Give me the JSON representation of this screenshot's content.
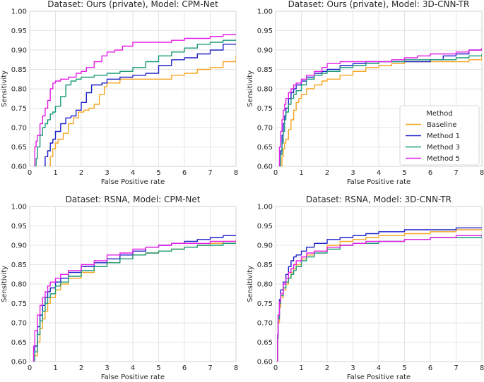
{
  "figure": {
    "legend": {
      "title": "Method",
      "entries": [
        "Baseline",
        "Method 1",
        "Method 3",
        "Method 5"
      ]
    }
  },
  "colors": {
    "Baseline": "#f5a623",
    "Method 1": "#1f22c9",
    "Method 3": "#1a9a78",
    "Method 5": "#e51ee5"
  },
  "chart_data": [
    {
      "type": "line",
      "title": "Dataset: Ours (private), Model: CPM-Net",
      "xlabel": "False Positive rate",
      "ylabel": "Sensitivity",
      "xlim": [
        0,
        8
      ],
      "ylim": [
        0.6,
        1.0
      ],
      "xticks": [
        "0",
        "1",
        "2",
        "3",
        "4",
        "5",
        "6",
        "7",
        "8"
      ],
      "yticks": [
        "0.60",
        "0.65",
        "0.70",
        "0.75",
        "0.80",
        "0.85",
        "0.90",
        "0.95",
        "1.00"
      ],
      "grid": true,
      "series": [
        {
          "name": "Baseline",
          "x": [
            0.75,
            0.8,
            0.9,
            1.0,
            1.1,
            1.3,
            1.5,
            1.7,
            1.9,
            2.1,
            2.3,
            2.5,
            2.7,
            2.9,
            3.0,
            3.5,
            4.0,
            4.5,
            5.0,
            5.5,
            6.0,
            6.5,
            7.0,
            7.5,
            8.0
          ],
          "y": [
            0.6,
            0.625,
            0.645,
            0.66,
            0.67,
            0.685,
            0.71,
            0.725,
            0.74,
            0.745,
            0.75,
            0.76,
            0.785,
            0.805,
            0.815,
            0.825,
            0.825,
            0.825,
            0.825,
            0.835,
            0.84,
            0.85,
            0.855,
            0.87,
            0.885
          ]
        },
        {
          "name": "Method 1",
          "x": [
            0.55,
            0.6,
            0.7,
            0.8,
            0.9,
            1.0,
            1.2,
            1.4,
            1.6,
            1.8,
            2.0,
            2.2,
            2.4,
            2.6,
            2.8,
            3.0,
            3.5,
            4.0,
            4.5,
            5.0,
            5.5,
            6.0,
            6.5,
            7.0,
            7.5,
            8.0
          ],
          "y": [
            0.6,
            0.625,
            0.64,
            0.66,
            0.67,
            0.69,
            0.71,
            0.725,
            0.73,
            0.745,
            0.765,
            0.79,
            0.81,
            0.81,
            0.815,
            0.825,
            0.83,
            0.835,
            0.84,
            0.86,
            0.875,
            0.88,
            0.89,
            0.9,
            0.915,
            0.915
          ]
        },
        {
          "name": "Method 3",
          "x": [
            0.2,
            0.25,
            0.3,
            0.4,
            0.5,
            0.6,
            0.7,
            0.8,
            0.9,
            1.0,
            1.2,
            1.4,
            1.6,
            1.8,
            2.0,
            2.5,
            3.0,
            3.5,
            4.0,
            4.5,
            5.0,
            5.5,
            6.0,
            6.5,
            7.0,
            7.5,
            8.0
          ],
          "y": [
            0.6,
            0.62,
            0.65,
            0.68,
            0.7,
            0.71,
            0.72,
            0.735,
            0.74,
            0.755,
            0.78,
            0.81,
            0.82,
            0.825,
            0.83,
            0.835,
            0.84,
            0.845,
            0.855,
            0.87,
            0.885,
            0.895,
            0.905,
            0.915,
            0.92,
            0.925,
            0.925
          ]
        },
        {
          "name": "Method 5",
          "x": [
            0.15,
            0.2,
            0.25,
            0.3,
            0.4,
            0.5,
            0.6,
            0.7,
            0.8,
            0.9,
            1.0,
            1.2,
            1.5,
            1.8,
            2.0,
            2.2,
            2.5,
            2.8,
            3.0,
            3.3,
            3.6,
            4.0,
            4.5,
            5.0,
            5.5,
            6.0,
            6.5,
            7.0,
            7.5,
            8.0
          ],
          "y": [
            0.6,
            0.65,
            0.665,
            0.68,
            0.71,
            0.73,
            0.75,
            0.77,
            0.8,
            0.815,
            0.82,
            0.825,
            0.83,
            0.84,
            0.845,
            0.855,
            0.87,
            0.885,
            0.895,
            0.9,
            0.91,
            0.92,
            0.92,
            0.92,
            0.925,
            0.93,
            0.93,
            0.935,
            0.94,
            0.94
          ]
        }
      ]
    },
    {
      "type": "line",
      "title": "Dataset: Ours (private), Model: 3D-CNN-TR",
      "xlabel": "False Positive rate",
      "ylabel": "Sensitivity",
      "xlim": [
        0,
        8
      ],
      "ylim": [
        0.6,
        1.0
      ],
      "xticks": [
        "0",
        "1",
        "2",
        "3",
        "4",
        "5",
        "6",
        "7",
        "8"
      ],
      "yticks": [
        "0.60",
        "0.65",
        "0.70",
        "0.75",
        "0.80",
        "0.85",
        "0.90",
        "0.95",
        "1.00"
      ],
      "grid": true,
      "legend_position": "center right",
      "series": [
        {
          "name": "Baseline",
          "x": [
            0.2,
            0.25,
            0.3,
            0.35,
            0.4,
            0.5,
            0.6,
            0.7,
            0.8,
            0.9,
            1.0,
            1.2,
            1.5,
            1.8,
            2.0,
            2.5,
            3.0,
            3.5,
            4.0,
            4.5,
            5.0,
            5.5,
            6.0,
            6.5,
            7.0,
            7.5,
            8.0
          ],
          "y": [
            0.6,
            0.625,
            0.645,
            0.66,
            0.67,
            0.695,
            0.72,
            0.745,
            0.765,
            0.775,
            0.785,
            0.8,
            0.81,
            0.82,
            0.825,
            0.835,
            0.845,
            0.855,
            0.86,
            0.865,
            0.87,
            0.87,
            0.87,
            0.87,
            0.87,
            0.875,
            0.89
          ]
        },
        {
          "name": "Method 1",
          "x": [
            0.15,
            0.2,
            0.25,
            0.3,
            0.35,
            0.4,
            0.5,
            0.6,
            0.7,
            0.8,
            1.0,
            1.2,
            1.5,
            1.8,
            2.0,
            2.5,
            3.0,
            3.5,
            4.0,
            5.0,
            6.0,
            6.5,
            7.0,
            7.5,
            8.0
          ],
          "y": [
            0.6,
            0.64,
            0.68,
            0.71,
            0.73,
            0.75,
            0.775,
            0.79,
            0.8,
            0.81,
            0.82,
            0.83,
            0.84,
            0.845,
            0.85,
            0.86,
            0.865,
            0.87,
            0.87,
            0.87,
            0.875,
            0.885,
            0.89,
            0.9,
            0.905
          ]
        },
        {
          "name": "Method 3",
          "x": [
            0.15,
            0.2,
            0.25,
            0.3,
            0.35,
            0.4,
            0.5,
            0.6,
            0.7,
            0.8,
            1.0,
            1.2,
            1.5,
            1.8,
            2.0,
            2.5,
            3.0,
            3.5,
            4.0,
            5.0,
            6.0,
            7.0,
            7.5,
            8.0
          ],
          "y": [
            0.6,
            0.63,
            0.66,
            0.69,
            0.72,
            0.74,
            0.76,
            0.775,
            0.785,
            0.795,
            0.81,
            0.825,
            0.835,
            0.84,
            0.845,
            0.855,
            0.86,
            0.865,
            0.87,
            0.875,
            0.875,
            0.88,
            0.885,
            0.89
          ]
        },
        {
          "name": "Method 5",
          "x": [
            0.12,
            0.15,
            0.2,
            0.25,
            0.3,
            0.35,
            0.4,
            0.5,
            0.6,
            0.7,
            0.8,
            1.0,
            1.2,
            1.5,
            1.8,
            2.0,
            2.5,
            3.0,
            3.5,
            4.0,
            4.5,
            5.0,
            5.5,
            6.0,
            7.0,
            7.5,
            8.0
          ],
          "y": [
            0.6,
            0.65,
            0.69,
            0.72,
            0.745,
            0.76,
            0.775,
            0.79,
            0.8,
            0.81,
            0.815,
            0.825,
            0.835,
            0.845,
            0.855,
            0.865,
            0.87,
            0.87,
            0.87,
            0.87,
            0.875,
            0.88,
            0.885,
            0.89,
            0.895,
            0.9,
            0.905
          ]
        }
      ]
    },
    {
      "type": "line",
      "title": "Dataset: RSNA, Model: CPM-Net",
      "xlabel": "False Positive rate",
      "ylabel": "Sensitivity",
      "xlim": [
        0,
        8
      ],
      "ylim": [
        0.6,
        1.0
      ],
      "xticks": [
        "0",
        "1",
        "2",
        "3",
        "4",
        "5",
        "6",
        "7",
        "8"
      ],
      "yticks": [
        "0.60",
        "0.65",
        "0.70",
        "0.75",
        "0.80",
        "0.85",
        "0.90",
        "0.95",
        "1.00"
      ],
      "grid": true,
      "series": [
        {
          "name": "Baseline",
          "x": [
            0.15,
            0.2,
            0.3,
            0.4,
            0.5,
            0.6,
            0.7,
            0.8,
            1.0,
            1.2,
            1.5,
            2.0,
            2.5,
            3.0,
            3.5,
            4.0,
            4.5,
            5.0,
            5.5,
            6.0,
            6.5,
            7.0,
            7.5,
            8.0
          ],
          "y": [
            0.6,
            0.615,
            0.65,
            0.685,
            0.71,
            0.73,
            0.75,
            0.765,
            0.785,
            0.8,
            0.815,
            0.83,
            0.845,
            0.855,
            0.865,
            0.875,
            0.88,
            0.885,
            0.89,
            0.895,
            0.9,
            0.905,
            0.91,
            0.915
          ]
        },
        {
          "name": "Method 1",
          "x": [
            0.15,
            0.2,
            0.3,
            0.4,
            0.5,
            0.6,
            0.7,
            0.8,
            1.0,
            1.2,
            1.5,
            2.0,
            2.5,
            3.0,
            3.5,
            4.0,
            4.5,
            5.0,
            5.5,
            6.0,
            6.5,
            7.0,
            7.5,
            8.0
          ],
          "y": [
            0.6,
            0.64,
            0.69,
            0.72,
            0.745,
            0.765,
            0.78,
            0.79,
            0.805,
            0.815,
            0.83,
            0.845,
            0.855,
            0.865,
            0.875,
            0.885,
            0.895,
            0.9,
            0.905,
            0.91,
            0.915,
            0.92,
            0.925,
            0.925
          ]
        },
        {
          "name": "Method 3",
          "x": [
            0.15,
            0.2,
            0.3,
            0.4,
            0.5,
            0.6,
            0.7,
            0.8,
            1.0,
            1.2,
            1.5,
            2.0,
            2.5,
            3.0,
            3.5,
            4.0,
            4.5,
            5.0,
            5.5,
            6.0,
            6.5,
            7.0,
            7.5,
            8.0
          ],
          "y": [
            0.6,
            0.625,
            0.67,
            0.705,
            0.73,
            0.75,
            0.765,
            0.775,
            0.795,
            0.805,
            0.82,
            0.835,
            0.845,
            0.855,
            0.865,
            0.875,
            0.88,
            0.885,
            0.89,
            0.895,
            0.9,
            0.9,
            0.905,
            0.905
          ]
        },
        {
          "name": "Method 5",
          "x": [
            0.12,
            0.15,
            0.2,
            0.3,
            0.4,
            0.5,
            0.6,
            0.7,
            0.8,
            1.0,
            1.2,
            1.5,
            2.0,
            2.5,
            3.0,
            3.5,
            4.0,
            4.5,
            5.0,
            5.5,
            6.0,
            6.5,
            7.0,
            7.5,
            8.0
          ],
          "y": [
            0.6,
            0.64,
            0.68,
            0.72,
            0.745,
            0.765,
            0.78,
            0.795,
            0.805,
            0.815,
            0.825,
            0.835,
            0.85,
            0.86,
            0.875,
            0.88,
            0.89,
            0.895,
            0.9,
            0.905,
            0.905,
            0.905,
            0.91,
            0.91,
            0.91
          ]
        }
      ]
    },
    {
      "type": "line",
      "title": "Dataset: RSNA, Model: 3D-CNN-TR",
      "xlabel": "False Positive rate",
      "ylabel": "Sensitivity",
      "xlim": [
        0,
        8
      ],
      "ylim": [
        0.6,
        1.0
      ],
      "xticks": [
        "0",
        "1",
        "2",
        "3",
        "4",
        "5",
        "6",
        "7",
        "8"
      ],
      "yticks": [
        "0.60",
        "0.65",
        "0.70",
        "0.75",
        "0.80",
        "0.85",
        "0.90",
        "0.95",
        "1.00"
      ],
      "grid": true,
      "series": [
        {
          "name": "Baseline",
          "x": [
            0.05,
            0.08,
            0.1,
            0.15,
            0.2,
            0.3,
            0.4,
            0.5,
            0.6,
            0.7,
            0.8,
            1.0,
            1.2,
            1.5,
            2.0,
            2.5,
            3.0,
            3.5,
            4.0,
            5.0,
            6.0,
            7.0,
            8.0
          ],
          "y": [
            0.6,
            0.66,
            0.7,
            0.74,
            0.765,
            0.785,
            0.8,
            0.815,
            0.83,
            0.84,
            0.85,
            0.865,
            0.875,
            0.885,
            0.9,
            0.91,
            0.915,
            0.92,
            0.925,
            0.93,
            0.935,
            0.94,
            0.94
          ]
        },
        {
          "name": "Method 1",
          "x": [
            0.05,
            0.08,
            0.1,
            0.15,
            0.2,
            0.3,
            0.4,
            0.5,
            0.6,
            0.7,
            0.8,
            1.0,
            1.2,
            1.5,
            2.0,
            2.5,
            3.0,
            3.5,
            4.0,
            5.0,
            6.0,
            7.0,
            8.0
          ],
          "y": [
            0.6,
            0.67,
            0.72,
            0.76,
            0.785,
            0.805,
            0.825,
            0.845,
            0.86,
            0.87,
            0.875,
            0.885,
            0.895,
            0.905,
            0.915,
            0.92,
            0.925,
            0.93,
            0.935,
            0.94,
            0.94,
            0.945,
            0.945
          ]
        },
        {
          "name": "Method 3",
          "x": [
            0.05,
            0.08,
            0.1,
            0.15,
            0.2,
            0.3,
            0.4,
            0.5,
            0.6,
            0.7,
            0.8,
            1.0,
            1.2,
            1.5,
            2.0,
            2.5,
            3.0,
            3.5,
            4.0,
            5.0,
            6.0,
            7.0,
            8.0
          ],
          "y": [
            0.6,
            0.66,
            0.71,
            0.75,
            0.77,
            0.79,
            0.805,
            0.815,
            0.825,
            0.835,
            0.845,
            0.86,
            0.87,
            0.88,
            0.89,
            0.9,
            0.905,
            0.905,
            0.91,
            0.915,
            0.92,
            0.92,
            0.925
          ]
        },
        {
          "name": "Method 5",
          "x": [
            0.05,
            0.08,
            0.1,
            0.15,
            0.2,
            0.3,
            0.4,
            0.5,
            0.6,
            0.7,
            0.8,
            1.0,
            1.2,
            1.5,
            2.0,
            2.5,
            3.0,
            3.5,
            4.0,
            5.0,
            6.0,
            7.0,
            8.0
          ],
          "y": [
            0.6,
            0.67,
            0.72,
            0.755,
            0.775,
            0.8,
            0.815,
            0.83,
            0.84,
            0.85,
            0.86,
            0.87,
            0.88,
            0.885,
            0.895,
            0.9,
            0.905,
            0.91,
            0.91,
            0.915,
            0.92,
            0.925,
            0.925
          ]
        }
      ]
    }
  ]
}
